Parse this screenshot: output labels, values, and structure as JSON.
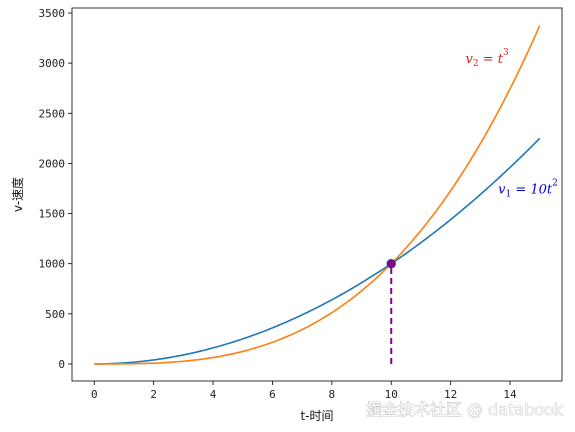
{
  "chart_data": {
    "type": "line",
    "xlabel": "t-时间",
    "ylabel": "v-速度",
    "xlim": [
      -0.75,
      15.75
    ],
    "ylim": [
      -170,
      3550
    ],
    "xticks": [
      0,
      2,
      4,
      6,
      8,
      10,
      12,
      14
    ],
    "yticks": [
      0,
      500,
      1000,
      1500,
      2000,
      2500,
      3000,
      3500
    ],
    "grid": false,
    "series": [
      {
        "name": "v₁ = 10t²",
        "formula": "10*t^2",
        "color": "#1f77b4",
        "x": [
          0,
          1,
          2,
          3,
          4,
          5,
          6,
          7,
          8,
          9,
          10,
          11,
          12,
          13,
          14,
          15
        ],
        "y": [
          0,
          10,
          40,
          90,
          160,
          250,
          360,
          490,
          640,
          810,
          1000,
          1210,
          1440,
          1690,
          1960,
          2250
        ]
      },
      {
        "name": "v₂ = t³",
        "formula": "t^3",
        "color": "#ff7f0e",
        "x": [
          0,
          1,
          2,
          3,
          4,
          5,
          6,
          7,
          8,
          9,
          10,
          11,
          12,
          13,
          14,
          15
        ],
        "y": [
          0,
          1,
          8,
          27,
          64,
          125,
          216,
          343,
          512,
          729,
          1000,
          1331,
          1728,
          2197,
          2744,
          3375
        ]
      }
    ],
    "annotations": [
      {
        "name": "v2-label",
        "base": "v",
        "sub": "2",
        "eq": " = t",
        "sup": "3",
        "color": "#e41a1c",
        "x": 12.5,
        "y": 3000
      },
      {
        "name": "v1-label",
        "base": "v",
        "sub": "1",
        "eq": " = 10t",
        "sup": "2",
        "color": "#0000cc",
        "x": 13.6,
        "y": 1700
      }
    ],
    "marker": {
      "x": 10,
      "y": 1000,
      "color": "#8b008b"
    },
    "vline": {
      "x": 10,
      "y0": 0,
      "y1": 1000,
      "color": "#8b008b",
      "style": "dashed"
    }
  },
  "watermark": "掘金技术社区 @ databook"
}
